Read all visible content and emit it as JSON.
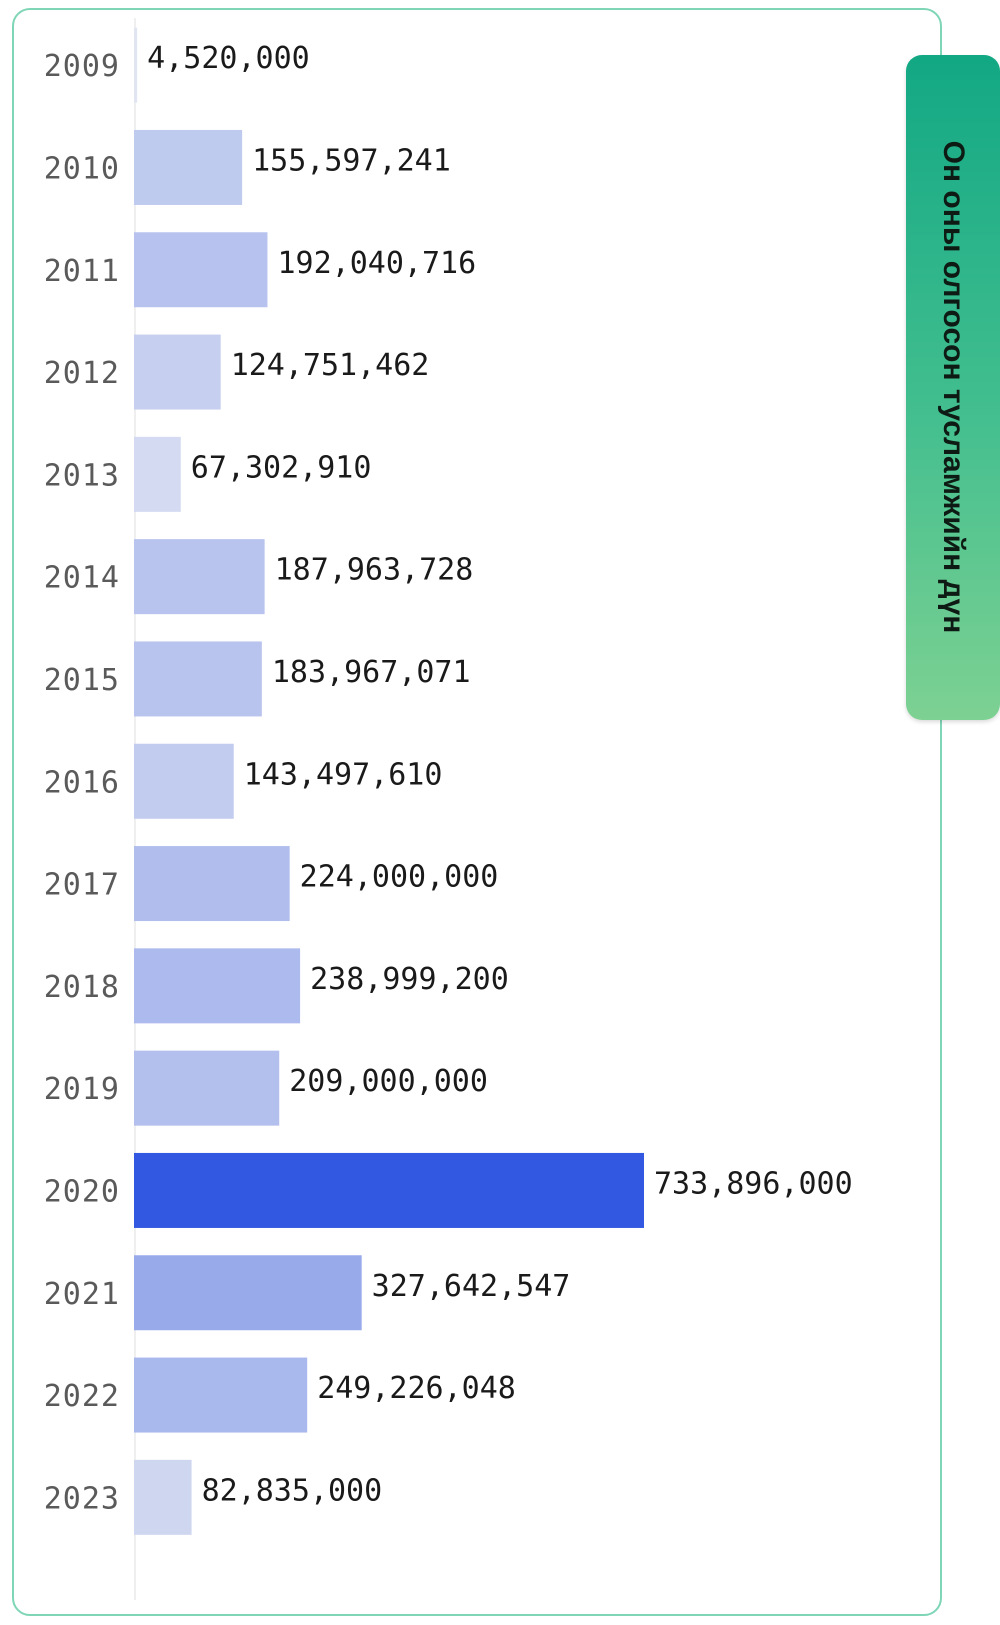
{
  "side_tab": {
    "label": "Он оны олгосон тусламжийн дүн"
  },
  "colors": {
    "highlight_bar": "#3257e0",
    "panel_border": "#7fd6b6",
    "tab_gradient_top": "#12a884",
    "tab_gradient_bottom": "#7dd192"
  },
  "chart_data": {
    "type": "bar",
    "orientation": "horizontal",
    "categories": [
      "2009",
      "2010",
      "2011",
      "2012",
      "2013",
      "2014",
      "2015",
      "2016",
      "2017",
      "2018",
      "2019",
      "2020",
      "2021",
      "2022",
      "2023"
    ],
    "values": [
      4520000,
      155597241,
      192040716,
      124751462,
      67302910,
      187963728,
      183967071,
      143497610,
      224000000,
      238999200,
      209000000,
      733896000,
      327642547,
      249226048,
      82835000
    ],
    "value_labels": [
      "4,520,000",
      "155,597,241",
      "192,040,716",
      "124,751,462",
      "67,302,910",
      "187,963,728",
      "183,967,071",
      "143,497,610",
      "224,000,000",
      "238,999,200",
      "209,000,000",
      "733,896,000",
      "327,642,547",
      "249,226,048",
      "82,835,000"
    ],
    "title": "",
    "xlabel": "",
    "ylabel": "",
    "grid": false,
    "legend": "none",
    "highlighted_category": "2020"
  }
}
